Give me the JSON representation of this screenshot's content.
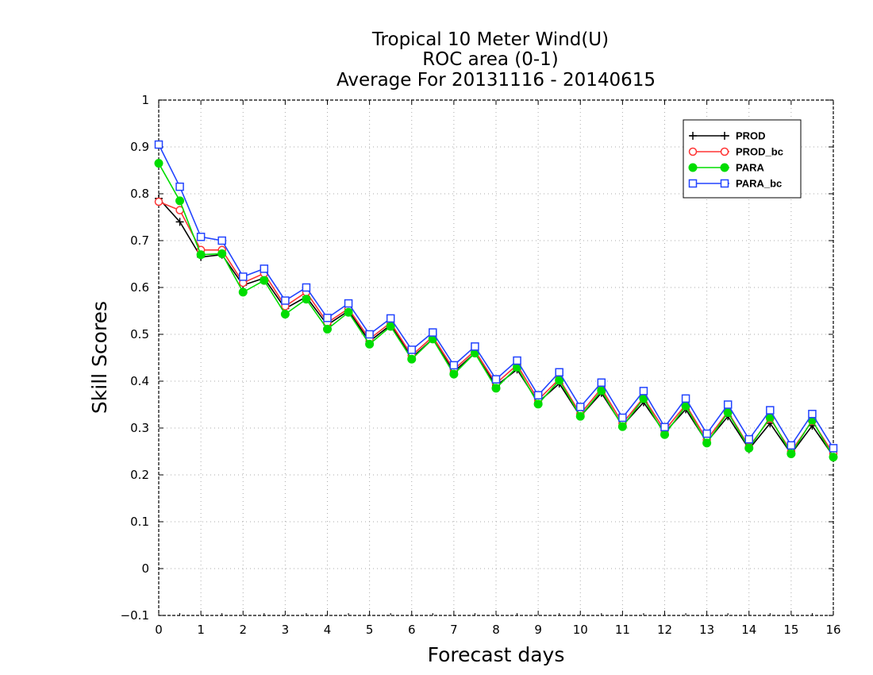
{
  "chart_data": {
    "type": "line",
    "title": [
      "Tropical 10 Meter Wind(U)",
      "ROC area (0-1)",
      "Average For 20131116 - 20140615"
    ],
    "xlabel": "Forecast days",
    "ylabel": "Skill Scores",
    "xlim": [
      0,
      16
    ],
    "ylim": [
      -0.1,
      1
    ],
    "x_ticks": [
      "0",
      "1",
      "2",
      "3",
      "4",
      "5",
      "6",
      "7",
      "8",
      "9",
      "10",
      "11",
      "12",
      "13",
      "14",
      "15",
      "16"
    ],
    "y_ticks": [
      "−0.1",
      "0",
      "0.1",
      "0.2",
      "0.3",
      "0.4",
      "0.5",
      "0.6",
      "0.7",
      "0.8",
      "0.9",
      "1"
    ],
    "grid": true,
    "legend_position": "top-right",
    "x": [
      0,
      0.5,
      1,
      1.5,
      2,
      2.5,
      3,
      3.5,
      4,
      4.5,
      5,
      5.5,
      6,
      6.5,
      7,
      7.5,
      8,
      8.5,
      9,
      9.5,
      10,
      10.5,
      11,
      11.5,
      12,
      12.5,
      13,
      13.5,
      14,
      14.5,
      15,
      15.5,
      16
    ],
    "series": [
      {
        "name": "PROD",
        "color": "#000000",
        "marker": "plus",
        "values": [
          0.79,
          0.74,
          0.665,
          0.67,
          0.605,
          0.62,
          0.555,
          0.58,
          0.52,
          0.55,
          0.485,
          0.52,
          0.45,
          0.49,
          0.42,
          0.46,
          0.39,
          0.425,
          0.355,
          0.395,
          0.325,
          0.375,
          0.305,
          0.355,
          0.29,
          0.34,
          0.27,
          0.325,
          0.255,
          0.31,
          0.245,
          0.305,
          0.24
        ]
      },
      {
        "name": "PROD_bc",
        "color": "#ff3333",
        "marker": "open-circle",
        "values": [
          0.783,
          0.765,
          0.68,
          0.68,
          0.61,
          0.63,
          0.56,
          0.59,
          0.525,
          0.555,
          0.49,
          0.525,
          0.455,
          0.495,
          0.425,
          0.465,
          0.395,
          0.435,
          0.36,
          0.405,
          0.33,
          0.385,
          0.31,
          0.365,
          0.295,
          0.35,
          0.275,
          0.335,
          0.26,
          0.32,
          0.25,
          0.315,
          0.245
        ]
      },
      {
        "name": "PARA",
        "color": "#00dd00",
        "marker": "filled-circle",
        "values": [
          0.865,
          0.785,
          0.67,
          0.672,
          0.59,
          0.615,
          0.543,
          0.575,
          0.511,
          0.547,
          0.479,
          0.517,
          0.447,
          0.49,
          0.415,
          0.46,
          0.385,
          0.43,
          0.351,
          0.402,
          0.325,
          0.38,
          0.303,
          0.363,
          0.286,
          0.347,
          0.268,
          0.333,
          0.257,
          0.323,
          0.245,
          0.317,
          0.238
        ]
      },
      {
        "name": "PARA_bc",
        "color": "#2244ff",
        "marker": "open-square",
        "values": [
          0.905,
          0.815,
          0.708,
          0.7,
          0.623,
          0.64,
          0.572,
          0.6,
          0.535,
          0.566,
          0.5,
          0.534,
          0.467,
          0.504,
          0.434,
          0.474,
          0.404,
          0.444,
          0.37,
          0.419,
          0.345,
          0.397,
          0.322,
          0.379,
          0.302,
          0.363,
          0.288,
          0.35,
          0.276,
          0.338,
          0.263,
          0.33,
          0.257
        ]
      }
    ]
  }
}
